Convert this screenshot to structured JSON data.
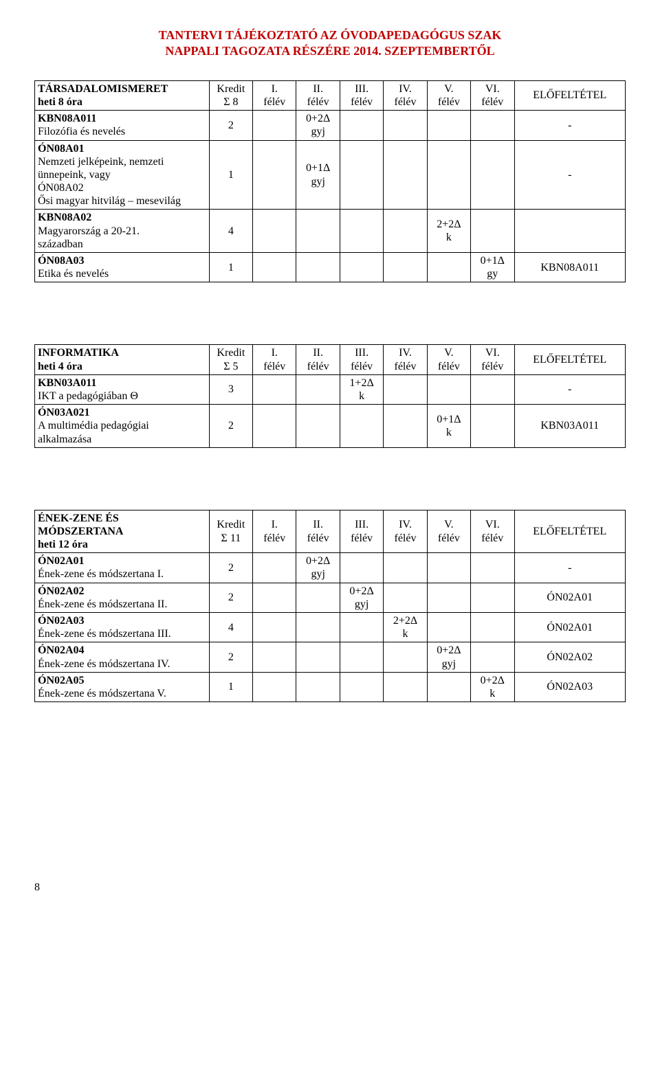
{
  "page_title_lines": [
    "TANTERVI TÁJÉKOZTATÓ AZ ÓVODAPEDAGÓGUS SZAK",
    "NAPPALI TAGOZATA RÉSZÉRE 2014. SZEPTEMBERTŐL"
  ],
  "col_headers": {
    "kredit": "Kredit",
    "sem1": "I.\nfélév",
    "sem2": "II.\nfélév",
    "sem3": "III.\nfélév",
    "sem4": "IV.\nfélév",
    "sem5": "V.\nfélév",
    "sem6": "VI.\nfélév",
    "elo": "ELŐFELTÉTEL"
  },
  "tables": [
    {
      "title_line1": "TÁRSADALOMISMERET",
      "title_line2": "heti 8 óra",
      "sigma": "Σ 8",
      "rows": [
        {
          "name": "KBN08A011\nFilozófia és nevelés",
          "kredit": "2",
          "s1": "",
          "s2": "0+2Δ\ngyj",
          "s3": "",
          "s4": "",
          "s5": "",
          "s6": "",
          "elo": "-"
        },
        {
          "name": "ÓN08A01\nNemzeti jelképeink, nemzeti\nünnepeink, vagy\nÓN08A02\nŐsi magyar hitvilág – mesevilág",
          "kredit": "1",
          "s1": "",
          "s2": "0+1Δ\ngyj",
          "s3": "",
          "s4": "",
          "s5": "",
          "s6": "",
          "elo": "-"
        },
        {
          "name": "KBN08A02\nMagyarország a 20-21.\nszázadban",
          "kredit": "4",
          "s1": "",
          "s2": "",
          "s3": "",
          "s4": "",
          "s5": "2+2Δ\nk",
          "s6": "",
          "elo": ""
        },
        {
          "name": "ÓN08A03\nEtika és nevelés",
          "kredit": "1",
          "s1": "",
          "s2": "",
          "s3": "",
          "s4": "",
          "s5": "",
          "s6": "0+1Δ\ngy",
          "elo": "KBN08A011"
        }
      ]
    },
    {
      "title_line1": "INFORMATIKA",
      "title_line2": "heti 4 óra",
      "sigma": "Σ 5",
      "rows": [
        {
          "name": "KBN03A011\nIKT a pedagógiában Θ",
          "kredit": "3",
          "s1": "",
          "s2": "",
          "s3": "1+2Δ\nk",
          "s4": "",
          "s5": "",
          "s6": "",
          "elo": "-"
        },
        {
          "name": "ÓN03A021\nA multimédia pedagógiai\nalkalmazása",
          "kredit": "2",
          "s1": "",
          "s2": "",
          "s3": "",
          "s4": "",
          "s5": "0+1Δ\nk",
          "s6": "",
          "elo": "KBN03A011"
        }
      ]
    },
    {
      "title_line1": "ÉNEK-ZENE ÉS\nMÓDSZERTANA",
      "title_line2": "heti 12 óra",
      "sigma": "Σ 11",
      "rows": [
        {
          "name": "ÓN02A01\nÉnek-zene és módszertana I.",
          "kredit": "2",
          "s1": "",
          "s2": "0+2Δ\ngyj",
          "s3": "",
          "s4": "",
          "s5": "",
          "s6": "",
          "elo": "-"
        },
        {
          "name": "ÓN02A02\nÉnek-zene és módszertana II.",
          "kredit": "2",
          "s1": "",
          "s2": "",
          "s3": "0+2Δ\ngyj",
          "s4": "",
          "s5": "",
          "s6": "",
          "elo": "ÓN02A01"
        },
        {
          "name": "ÓN02A03\nÉnek-zene és módszertana III.",
          "kredit": "4",
          "s1": "",
          "s2": "",
          "s3": "",
          "s4": "2+2Δ\nk",
          "s5": "",
          "s6": "",
          "elo": "ÓN02A01"
        },
        {
          "name": "ÓN02A04\nÉnek-zene és módszertana IV.",
          "kredit": "2",
          "s1": "",
          "s2": "",
          "s3": "",
          "s4": "",
          "s5": "0+2Δ\ngyj",
          "s6": "",
          "elo": "ÓN02A02"
        },
        {
          "name": "ÓN02A05\nÉnek-zene és módszertana V.",
          "kredit": "1",
          "s1": "",
          "s2": "",
          "s3": "",
          "s4": "",
          "s5": "",
          "s6": "0+2Δ\nk",
          "elo": "ÓN02A03"
        }
      ]
    }
  ],
  "page_number": "8"
}
